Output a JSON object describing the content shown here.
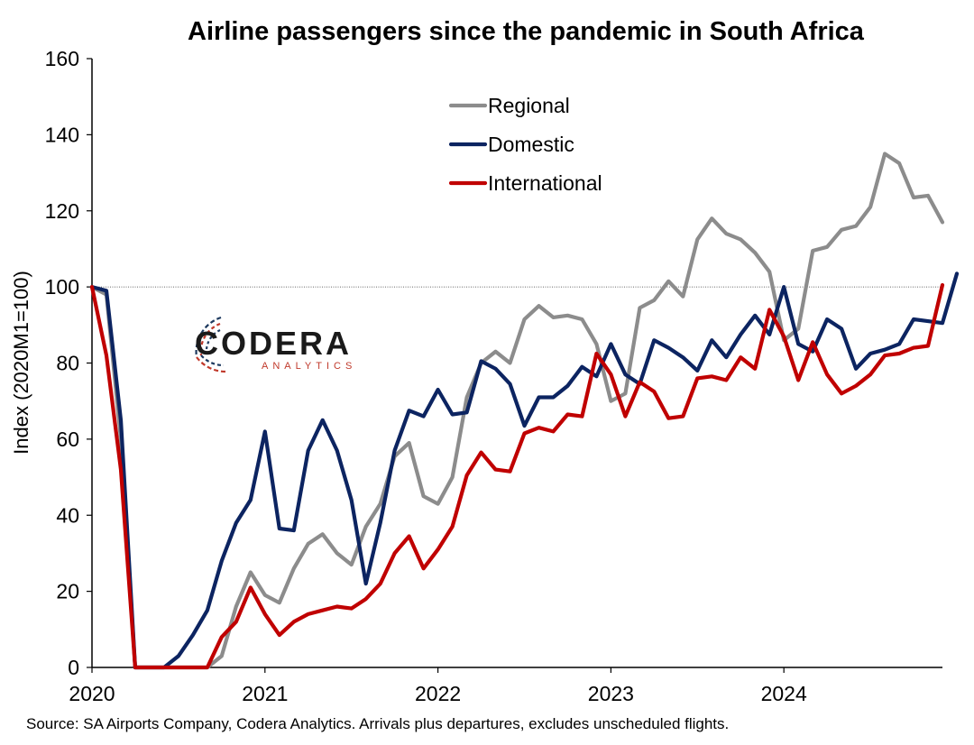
{
  "chart_data": {
    "type": "line",
    "title": "Airline passengers since the pandemic in South Africa",
    "ylabel": "Index (2020M1=100)",
    "xlabel": "",
    "ylim": [
      0,
      160
    ],
    "yticks": [
      0,
      20,
      40,
      60,
      80,
      100,
      120,
      140,
      160
    ],
    "xticks": [
      "2020",
      "2021",
      "2022",
      "2023",
      "2024"
    ],
    "x_start": "2020-01",
    "x_frequency": "monthly",
    "reference_line": 100,
    "grid": false,
    "legend_position": "top-center",
    "series": [
      {
        "name": "Regional",
        "color": "#8c8c8c",
        "values": [
          100,
          98,
          60,
          0,
          0,
          0,
          0,
          0,
          0,
          3,
          16,
          25,
          19,
          17,
          26,
          32.5,
          35,
          30,
          27,
          37,
          43,
          55.5,
          59,
          45,
          43,
          50,
          71,
          80,
          83,
          80,
          91.5,
          95,
          92,
          92.5,
          91.5,
          85,
          70,
          72,
          94.5,
          96.5,
          101.5,
          97.5,
          112.5,
          118,
          114,
          112.5,
          109,
          104,
          86,
          89,
          109.5,
          110.5,
          115,
          116,
          121,
          135,
          132.5,
          123.5,
          124,
          117
        ]
      },
      {
        "name": "Domestic",
        "color": "#0c2461",
        "values": [
          100,
          99,
          65,
          0,
          0,
          0,
          3,
          8.5,
          15,
          28,
          38,
          44,
          62,
          36.5,
          36,
          57,
          65,
          57,
          44,
          22,
          38,
          57,
          67.5,
          66,
          73,
          66.5,
          67,
          80.5,
          78.5,
          74.5,
          63.5,
          71,
          71,
          74,
          79,
          76.5,
          85,
          77,
          74.5,
          86,
          84,
          81.5,
          78,
          86,
          81.5,
          87.5,
          92.5,
          87.5,
          100,
          85,
          83,
          91.5,
          89,
          78.5,
          82.5,
          83.5,
          85,
          91.5,
          91,
          90.5,
          103.5
        ]
      },
      {
        "name": "International",
        "color": "#c00000",
        "values": [
          100,
          82,
          52,
          0,
          0,
          0,
          0,
          0,
          0,
          8,
          12,
          21,
          14,
          8.5,
          12,
          14,
          15,
          16,
          15.5,
          18,
          22,
          30,
          34.5,
          26,
          31,
          37,
          50.5,
          56.5,
          52,
          51.5,
          61.5,
          63,
          62,
          66.5,
          66,
          82.5,
          77,
          66,
          75,
          72.5,
          65.5,
          66,
          76,
          76.5,
          75.5,
          81.5,
          78.5,
          94,
          87,
          75.5,
          85.5,
          77,
          72,
          74,
          77,
          82,
          82.5,
          84,
          84.5,
          100.5
        ]
      }
    ],
    "source": "Source: SA Airports Company, Codera Analytics. Arrivals plus departures, excludes unscheduled flights."
  },
  "logo": {
    "name": "CODERA",
    "sub": "ANALYTICS"
  }
}
